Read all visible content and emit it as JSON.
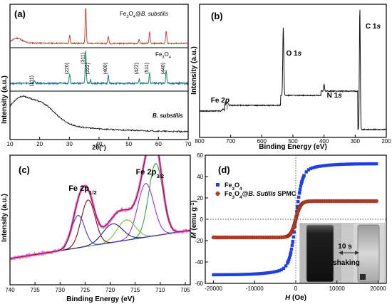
{
  "chart_data": [
    {
      "panel": "(a)",
      "type": "line",
      "xlabel": "2θ(°)",
      "ylabel": "Intensity (a.u.)",
      "xlim": [
        10,
        70
      ],
      "xticks": [
        10,
        20,
        30,
        40,
        50,
        60,
        70
      ],
      "colors": {
        "top": "#c0392b",
        "middle": "#1f3fbf",
        "fit": "#19a34a",
        "bottom": "#111111"
      },
      "series": [
        {
          "name": "Fe3O4@B. substilis",
          "label_main": "Fe",
          "label_sub1": "3",
          "label_mid": "O",
          "label_sub2": "4",
          "label_rest": "@B. substilis",
          "peaks": [
            {
              "x": 30.1,
              "h": 0.22
            },
            {
              "x": 35.5,
              "h": 1.0
            },
            {
              "x": 43.1,
              "h": 0.2
            },
            {
              "x": 53.5,
              "h": 0.1
            },
            {
              "x": 57.0,
              "h": 0.3
            },
            {
              "x": 62.6,
              "h": 0.35
            }
          ],
          "bump": {
            "x": 12.5,
            "h": 0.12
          }
        },
        {
          "name": "Fe3O4",
          "label_main": "Fe",
          "label_sub1": "3",
          "label_mid": "O",
          "label_sub2": "4",
          "label_rest": "",
          "peaks": [
            {
              "x": 18.3,
              "h": 0.08
            },
            {
              "x": 30.1,
              "h": 0.28
            },
            {
              "x": 35.5,
              "h": 1.0
            },
            {
              "x": 37.1,
              "h": 0.1
            },
            {
              "x": 43.1,
              "h": 0.24
            },
            {
              "x": 53.5,
              "h": 0.12
            },
            {
              "x": 57.0,
              "h": 0.3
            },
            {
              "x": 62.6,
              "h": 0.4
            }
          ]
        },
        {
          "name": "B. substilis",
          "broad": [
            {
              "x": 20,
              "h": 0.65,
              "w": 5
            },
            {
              "x": 13,
              "h": 0.45,
              "w": 3
            }
          ]
        }
      ],
      "annotations": [
        "(111)",
        "(220)",
        "(311)",
        "(222)",
        "(400)",
        "(422)",
        "(511)",
        "(440)"
      ],
      "annotation_x": [
        18.3,
        30.1,
        35.5,
        37.1,
        43.1,
        53.5,
        57.0,
        62.6
      ]
    },
    {
      "panel": "(b)",
      "type": "line",
      "xlabel": "Binding Energy (eV)",
      "ylabel": "Intensity (a.u.)",
      "xlim": [
        800,
        200
      ],
      "xticks": [
        800,
        700,
        600,
        500,
        400,
        300,
        200
      ],
      "color": "#111111",
      "peaks": [
        {
          "x": 711,
          "label": "Fe 2p"
        },
        {
          "x": 531,
          "label": "O 1s"
        },
        {
          "x": 400,
          "label": "N 1s"
        },
        {
          "x": 285,
          "label": "C 1s"
        }
      ]
    },
    {
      "panel": "(c)",
      "type": "line",
      "xlabel": "Binding Energy (eV)",
      "ylabel": "Intensity (a.u.)",
      "xlim": [
        740,
        704
      ],
      "xticks": [
        740,
        735,
        730,
        725,
        720,
        715,
        710,
        705
      ],
      "labels": [
        {
          "main": "Fe 2p",
          "sub": "1/2",
          "x": 725.5
        },
        {
          "main": "Fe 2p",
          "sub": "3/2",
          "x": 711.5
        }
      ],
      "components": [
        {
          "center": 710.9,
          "h": 0.78,
          "w": 1.4,
          "color": "#2eaa3a"
        },
        {
          "center": 712.9,
          "h": 0.58,
          "w": 1.6,
          "color": "#9b30ff"
        },
        {
          "center": 716.8,
          "h": 0.22,
          "w": 1.8,
          "color": "#7fbf2a"
        },
        {
          "center": 719.5,
          "h": 0.2,
          "w": 2.0,
          "color": "#222266"
        },
        {
          "center": 724.4,
          "h": 0.5,
          "w": 1.4,
          "color": "#7a1010"
        },
        {
          "center": 726.4,
          "h": 0.35,
          "w": 1.3,
          "color": "#3a3ac8"
        }
      ],
      "envelope_color": "#e04ad0",
      "fit_color": "#8b1a1a"
    },
    {
      "panel": "(d)",
      "type": "scatter",
      "xlabel": "H (Oe)",
      "ylabel": "M (emu g-1)",
      "xlim": [
        -22000,
        22000
      ],
      "ylim": [
        -60,
        60
      ],
      "xticks": [
        -20000,
        -10000,
        0,
        10000,
        20000
      ],
      "yticks": [
        -60,
        -40,
        -20,
        0,
        20,
        40,
        60
      ],
      "series": [
        {
          "name": "Fe3O4",
          "color": "#1f3fe0",
          "marker": "square",
          "ms": 52
        },
        {
          "name": "Fe3O4@B. Sutilis SPMC",
          "color": "#c0392b",
          "marker": "circle",
          "ms": 17
        }
      ],
      "legend": [
        {
          "main": "Fe",
          "s1": "3",
          "mid": "O",
          "s2": "4",
          "rest": ""
        },
        {
          "main": "Fe",
          "s1": "3",
          "mid": "O",
          "s2": "4",
          "rest": "@",
          "italic": "B. Sutilis",
          "tail": " SPMC"
        }
      ],
      "inset": {
        "arrow_label": "10 s",
        "shaking_label": "shaking"
      }
    }
  ]
}
